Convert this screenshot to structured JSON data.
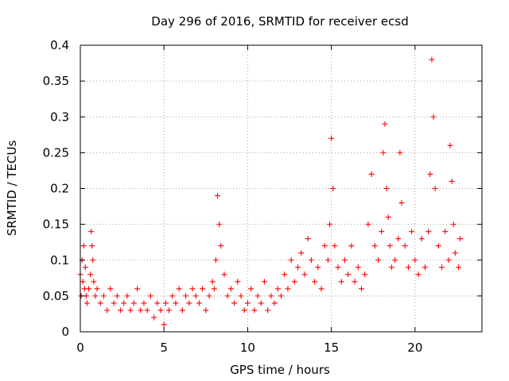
{
  "chart_data": {
    "type": "scatter",
    "title": "Day 296 of 2016, SRMTID for receiver ecsd",
    "xlabel": "GPS time / hours",
    "ylabel": "SRMTID / TECUs",
    "xlim": [
      0,
      24
    ],
    "ylim": [
      0,
      0.4
    ],
    "x_ticks": [
      0,
      5,
      10,
      15,
      20
    ],
    "x_tick_labels": [
      "0",
      "5",
      "10",
      "15",
      "20"
    ],
    "y_ticks": [
      0,
      0.05,
      0.1,
      0.15,
      0.2,
      0.25,
      0.3,
      0.35,
      0.4
    ],
    "y_tick_labels": [
      "0",
      "0.05",
      "0.1",
      "0.15",
      "0.2",
      "0.25",
      "0.3",
      "0.35",
      "0.4"
    ],
    "grid": true,
    "marker": "plus",
    "color": "#ff0000",
    "series": [
      {
        "name": "SRMTID",
        "x": [
          0.0,
          0.05,
          0.1,
          0.15,
          0.2,
          0.25,
          0.3,
          0.35,
          0.4,
          0.5,
          0.6,
          0.65,
          0.7,
          0.75,
          0.8,
          0.9,
          1.0,
          1.2,
          1.4,
          1.6,
          1.8,
          2.0,
          2.2,
          2.4,
          2.6,
          2.8,
          3.0,
          3.2,
          3.4,
          3.6,
          3.8,
          4.0,
          4.2,
          4.4,
          4.6,
          4.8,
          5.0,
          5.1,
          5.3,
          5.5,
          5.7,
          5.9,
          6.1,
          6.3,
          6.5,
          6.7,
          6.9,
          7.1,
          7.3,
          7.5,
          7.7,
          7.9,
          8.0,
          8.1,
          8.2,
          8.3,
          8.4,
          8.6,
          8.8,
          9.0,
          9.2,
          9.4,
          9.6,
          9.8,
          10.0,
          10.2,
          10.4,
          10.6,
          10.8,
          11.0,
          11.2,
          11.4,
          11.6,
          11.8,
          12.0,
          12.2,
          12.4,
          12.6,
          12.8,
          13.0,
          13.2,
          13.4,
          13.6,
          13.8,
          14.0,
          14.2,
          14.4,
          14.6,
          14.8,
          14.9,
          15.0,
          15.1,
          15.2,
          15.4,
          15.6,
          15.8,
          16.0,
          16.2,
          16.4,
          16.6,
          16.8,
          17.0,
          17.2,
          17.4,
          17.6,
          17.8,
          18.0,
          18.1,
          18.2,
          18.3,
          18.4,
          18.5,
          18.6,
          18.8,
          19.0,
          19.1,
          19.2,
          19.4,
          19.6,
          19.8,
          20.0,
          20.2,
          20.4,
          20.6,
          20.8,
          20.9,
          21.0,
          21.1,
          21.2,
          21.4,
          21.6,
          21.8,
          22.0,
          22.1,
          22.2,
          22.3,
          22.4,
          22.6,
          22.7
        ],
        "y": [
          0.08,
          0.05,
          0.1,
          0.07,
          0.12,
          0.06,
          0.09,
          0.05,
          0.04,
          0.06,
          0.08,
          0.14,
          0.12,
          0.1,
          0.07,
          0.05,
          0.06,
          0.04,
          0.05,
          0.03,
          0.06,
          0.04,
          0.05,
          0.03,
          0.04,
          0.05,
          0.03,
          0.04,
          0.06,
          0.03,
          0.04,
          0.03,
          0.05,
          0.02,
          0.04,
          0.03,
          0.01,
          0.04,
          0.03,
          0.05,
          0.04,
          0.06,
          0.03,
          0.05,
          0.04,
          0.06,
          0.05,
          0.04,
          0.06,
          0.03,
          0.05,
          0.07,
          0.06,
          0.1,
          0.19,
          0.15,
          0.12,
          0.08,
          0.05,
          0.06,
          0.04,
          0.07,
          0.05,
          0.03,
          0.04,
          0.06,
          0.03,
          0.05,
          0.04,
          0.07,
          0.03,
          0.05,
          0.04,
          0.06,
          0.05,
          0.08,
          0.06,
          0.1,
          0.07,
          0.09,
          0.11,
          0.08,
          0.13,
          0.1,
          0.07,
          0.09,
          0.06,
          0.12,
          0.1,
          0.15,
          0.27,
          0.2,
          0.12,
          0.09,
          0.07,
          0.1,
          0.08,
          0.12,
          0.07,
          0.09,
          0.06,
          0.08,
          0.15,
          0.22,
          0.12,
          0.1,
          0.14,
          0.25,
          0.29,
          0.2,
          0.16,
          0.12,
          0.09,
          0.1,
          0.13,
          0.25,
          0.18,
          0.12,
          0.09,
          0.14,
          0.1,
          0.08,
          0.13,
          0.09,
          0.14,
          0.22,
          0.38,
          0.3,
          0.2,
          0.12,
          0.09,
          0.14,
          0.1,
          0.26,
          0.21,
          0.15,
          0.11,
          0.09,
          0.13
        ]
      }
    ]
  }
}
